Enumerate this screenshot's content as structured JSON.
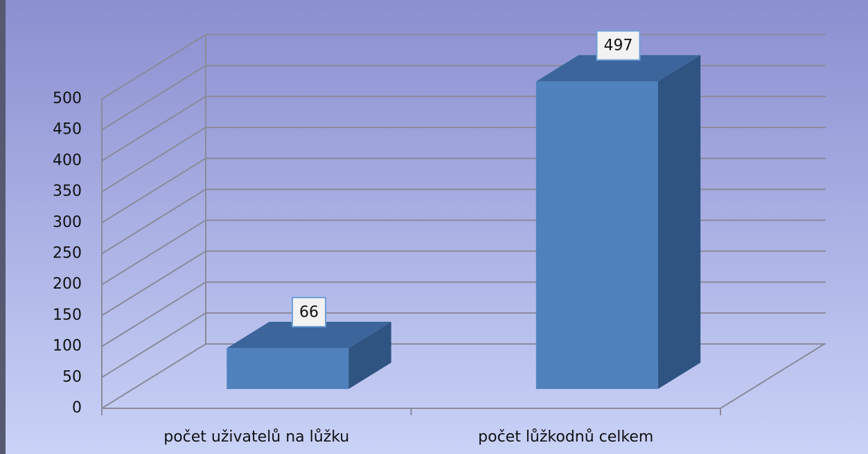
{
  "chart_data": {
    "type": "bar",
    "categories": [
      "počet uživatelů na lůžku",
      "počet lůžkodnů celkem"
    ],
    "values": [
      66,
      497
    ],
    "color": "#4f81bd",
    "ylim": [
      0,
      500
    ],
    "yticks": [
      0,
      50,
      100,
      150,
      200,
      250,
      300,
      350,
      400,
      450,
      500
    ],
    "grid": true
  }
}
